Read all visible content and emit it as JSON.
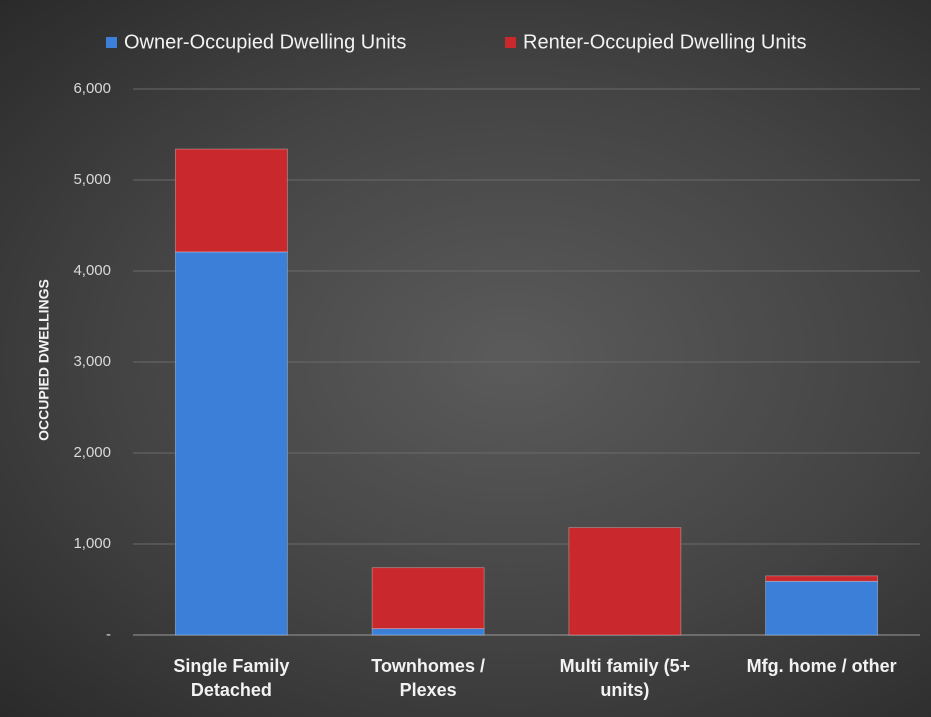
{
  "chart_data": {
    "type": "stacked_bar",
    "y_label": "OCCUPIED DWELLINGS",
    "categories": [
      "Single Family Detached",
      "Townhomes / Plexes",
      "Multi family (5+ units)",
      "Mfg. home / other"
    ],
    "series": [
      {
        "name": "Owner-Occupied Dwelling Units",
        "color": "#3c7fd8",
        "values": [
          4210,
          70,
          0,
          590
        ]
      },
      {
        "name": "Renter-Occupied Dwelling Units",
        "color": "#c9282c",
        "values": [
          1130,
          670,
          1180,
          60
        ]
      }
    ],
    "ylim": [
      0,
      6000
    ],
    "yticks": [
      {
        "value": 0,
        "label": "-"
      },
      {
        "value": 1000,
        "label": "1,000"
      },
      {
        "value": 2000,
        "label": "2,000"
      },
      {
        "value": 3000,
        "label": "3,000"
      },
      {
        "value": 4000,
        "label": "4,000"
      },
      {
        "value": 5000,
        "label": "5,000"
      },
      {
        "value": 6000,
        "label": "6,000"
      }
    ],
    "grid": true,
    "legend": "top"
  }
}
